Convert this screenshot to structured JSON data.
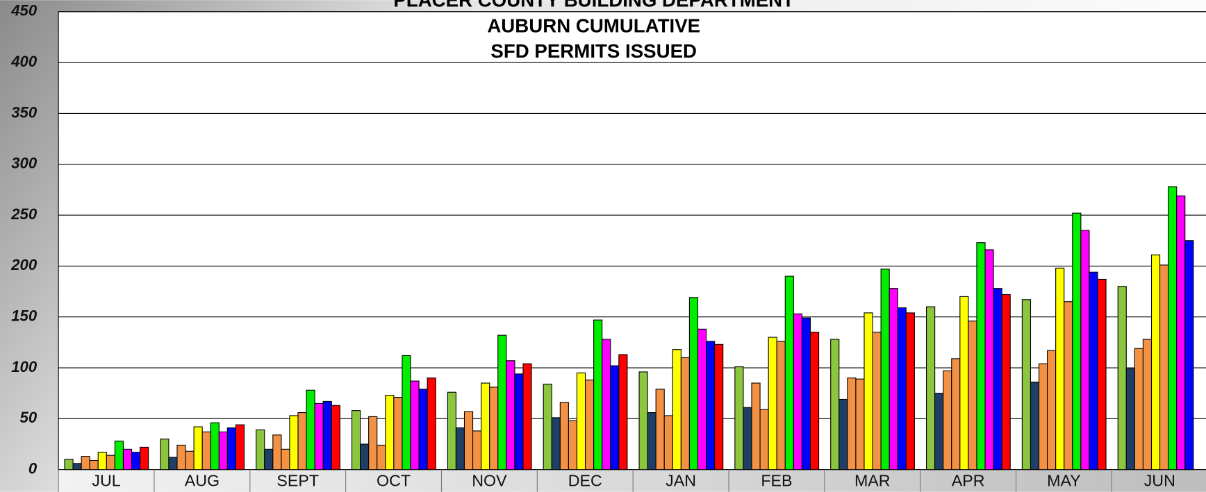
{
  "chart_data": {
    "type": "bar",
    "title": [
      "PLACER COUNTY BUILDING DEPARTMENT",
      "AUBURN CUMULATIVE",
      "SFD PERMITS ISSUED"
    ],
    "categories": [
      "JUL",
      "AUG",
      "SEPT",
      "OCT",
      "NOV",
      "DEC",
      "JAN",
      "FEB",
      "MAR",
      "APR",
      "MAY",
      "JUN"
    ],
    "series": [
      {
        "color": "#8cc63f",
        "values": [
          10,
          30,
          39,
          58,
          76,
          84,
          96,
          101,
          128,
          160,
          167,
          180
        ]
      },
      {
        "color": "#1f3f66",
        "values": [
          6,
          12,
          20,
          25,
          41,
          51,
          56,
          61,
          69,
          75,
          86,
          99
        ]
      },
      {
        "color": "#f39245",
        "values": [
          13,
          24,
          34,
          52,
          57,
          66,
          79,
          85,
          90,
          97,
          104,
          119
        ]
      },
      {
        "color": "#f39245",
        "values": [
          9,
          18,
          20,
          24,
          38,
          48,
          53,
          59,
          89,
          109,
          117,
          128
        ]
      },
      {
        "color": "#ffff00",
        "values": [
          17,
          42,
          53,
          73,
          85,
          95,
          118,
          130,
          154,
          170,
          198,
          211
        ]
      },
      {
        "color": "#f39245",
        "values": [
          14,
          37,
          56,
          71,
          81,
          88,
          110,
          126,
          135,
          146,
          165,
          201
        ]
      },
      {
        "color": "#00ee00",
        "values": [
          28,
          46,
          78,
          112,
          132,
          147,
          169,
          190,
          197,
          223,
          252,
          278
        ]
      },
      {
        "color": "#ff00ff",
        "values": [
          20,
          37,
          65,
          87,
          107,
          128,
          138,
          153,
          178,
          216,
          235,
          269
        ]
      },
      {
        "color": "#0000ff",
        "values": [
          17,
          41,
          67,
          79,
          94,
          102,
          126,
          149,
          159,
          178,
          194,
          225
        ]
      },
      {
        "color": "#ff0000",
        "values": [
          22,
          44,
          63,
          90,
          104,
          113,
          123,
          135,
          154,
          172,
          187,
          null
        ]
      }
    ],
    "ylim": [
      0,
      450
    ],
    "yticks": [
      0,
      50,
      100,
      150,
      200,
      250,
      300,
      350,
      400,
      450
    ],
    "grid": true
  }
}
